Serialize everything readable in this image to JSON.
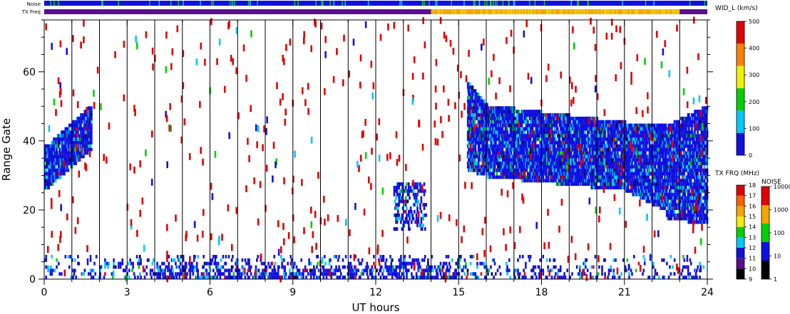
{
  "chart_data": {
    "type": "heatmap",
    "xlabel": "UT hours",
    "ylabel": "Range Gate",
    "xlim": [
      0,
      24
    ],
    "ylim": [
      0,
      75
    ],
    "x_ticks": [
      "0",
      "3",
      "6",
      "9",
      "12",
      "15",
      "18",
      "21",
      "24"
    ],
    "y_ticks": [
      "0",
      "20",
      "40",
      "60"
    ],
    "strip_labels": {
      "noise": "Noise",
      "txfreq": "TX Freq"
    },
    "tx_freq_schedule": [
      {
        "start": 0,
        "end": 14,
        "color": "#5a0f8c"
      },
      {
        "start": 14,
        "end": 23,
        "color": "#f4a500"
      },
      {
        "start": 23,
        "end": 24,
        "color": "#5a0f8c"
      }
    ],
    "colorbar_width": {
      "title": "WID_L (km/s)",
      "ticks": [
        "0",
        "100",
        "200",
        "300",
        "400",
        "500"
      ],
      "colors": [
        "#1010e0",
        "#00c8ff",
        "#00d000",
        "#f0f000",
        "#ff8000",
        "#e00000"
      ]
    },
    "colorbar_txfreq": {
      "title": "TX FRQ (MHz)",
      "ticks": [
        "9",
        "10",
        "11",
        "12",
        "13",
        "14",
        "15",
        "16",
        "17",
        "18"
      ],
      "colors": [
        "#000000",
        "#5a0f8c",
        "#1010e0",
        "#00c8ff",
        "#00d000",
        "#f0f000",
        "#f4a500",
        "#ff6000",
        "#e00000"
      ]
    },
    "colorbar_noise": {
      "title": "NOISE",
      "ticks": [
        "1",
        "10",
        "100",
        "1000",
        "10000"
      ],
      "colors": [
        "#000000",
        "#1010e0",
        "#00d000",
        "#f4a500",
        "#e00000"
      ]
    },
    "scatter_regions": [
      {
        "t0": 0.0,
        "t1": 1.7,
        "g_low0": 26,
        "g_low1": 38,
        "g_high0": 38,
        "g_high1": 50,
        "density": 0.85
      },
      {
        "t0": 12.6,
        "t1": 13.8,
        "g_low0": 14,
        "g_low1": 14,
        "g_high0": 27,
        "g_high1": 27,
        "density": 0.35
      },
      {
        "t0": 15.3,
        "t1": 16.0,
        "g_low0": 32,
        "g_low1": 30,
        "g_high0": 57,
        "g_high1": 50,
        "density": 0.85
      },
      {
        "t0": 16.0,
        "t1": 21.0,
        "g_low0": 30,
        "g_low1": 26,
        "g_high0": 50,
        "g_high1": 45,
        "density": 0.85
      },
      {
        "t0": 21.0,
        "t1": 22.5,
        "g_low0": 26,
        "g_low1": 20,
        "g_high0": 45,
        "g_high1": 44,
        "density": 0.85
      },
      {
        "t0": 22.5,
        "t1": 24.0,
        "g_low0": 18,
        "g_low1": 16,
        "g_high0": 44,
        "g_high1": 50,
        "density": 0.8
      }
    ],
    "ground_band": {
      "t0": 0,
      "t1": 24,
      "g_high": 6,
      "density": 0.5
    }
  }
}
